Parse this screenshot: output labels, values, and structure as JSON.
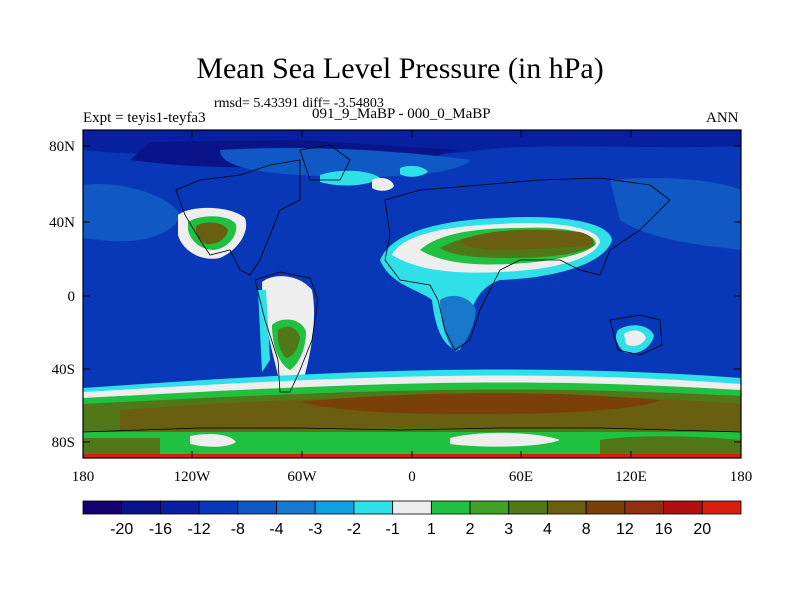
{
  "title": "Mean Sea Level Pressure (in hPa)",
  "stats": "rmsd= 5.43391 diff= -3.54803",
  "expt": "Expt = teyis1-teyfa3",
  "subtitle": "091_9_MaBP - 000_0_MaBP",
  "season": "ANN",
  "axes": {
    "y_ticks": [
      "80N",
      "40N",
      "0",
      "40S",
      "80S"
    ],
    "x_ticks": [
      "180",
      "120W",
      "60W",
      "0",
      "60E",
      "120E",
      "180"
    ]
  },
  "colorbar": {
    "labels": [
      "-20",
      "-16",
      "-12",
      "-8",
      "-4",
      "-3",
      "-2",
      "-1",
      "1",
      "2",
      "3",
      "4",
      "8",
      "12",
      "16",
      "20"
    ],
    "colors": [
      "#14006e",
      "#0a1488",
      "#0820a0",
      "#0838b8",
      "#1058c4",
      "#1878cc",
      "#10a0dc",
      "#30e0e8",
      "#eeeeee",
      "#20c040",
      "#40a028",
      "#507818",
      "#6a5e10",
      "#7a4008",
      "#903010",
      "#b01010",
      "#d82010"
    ]
  }
}
